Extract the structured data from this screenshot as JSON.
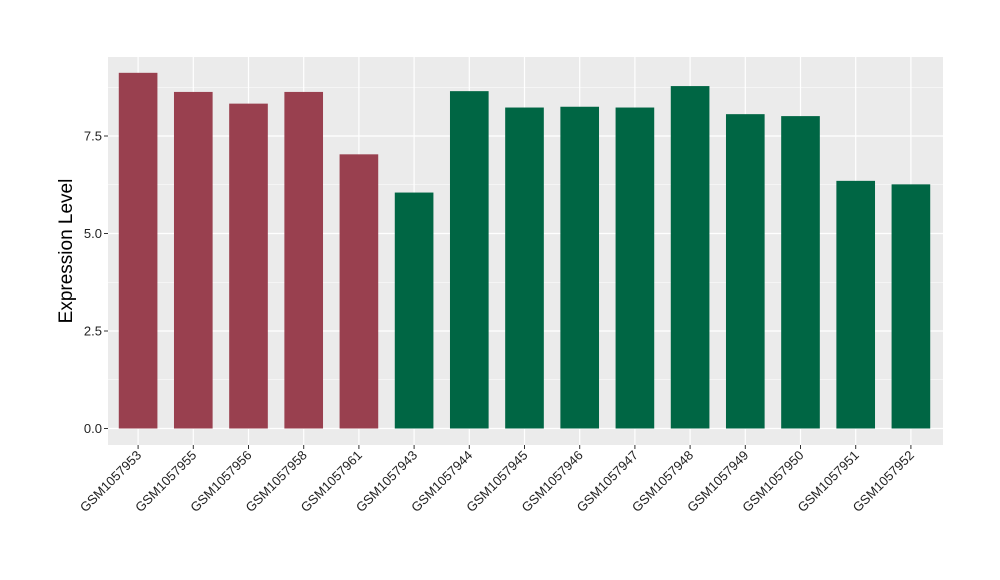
{
  "chart_data": {
    "type": "bar",
    "title": "",
    "xlabel": "",
    "ylabel": "Expression Level",
    "ylim": [
      0,
      9.5
    ],
    "yticks": [
      0,
      2.5,
      5,
      7.5
    ],
    "ytick_labels": [
      "0.0",
      "2.5",
      "5.0",
      "7.5"
    ],
    "grid": true,
    "legend": "none",
    "categories": [
      "GSM1057953",
      "GSM1057955",
      "GSM1057956",
      "GSM1057958",
      "GSM1057961",
      "GSM1057943",
      "GSM1057944",
      "GSM1057945",
      "GSM1057946",
      "GSM1057947",
      "GSM1057948",
      "GSM1057949",
      "GSM1057950",
      "GSM1057951",
      "GSM1057952"
    ],
    "values": [
      9.12,
      8.63,
      8.33,
      8.63,
      7.03,
      6.05,
      8.65,
      8.23,
      8.25,
      8.23,
      8.78,
      8.06,
      8.01,
      6.35,
      6.26
    ],
    "bar_colors": [
      "#99404f",
      "#99404f",
      "#99404f",
      "#99404f",
      "#99404f",
      "#006644",
      "#006644",
      "#006644",
      "#006644",
      "#006644",
      "#006644",
      "#006644",
      "#006644",
      "#006644",
      "#006644"
    ],
    "panel_color": "#ebebeb",
    "grid_color": "#ffffff"
  }
}
